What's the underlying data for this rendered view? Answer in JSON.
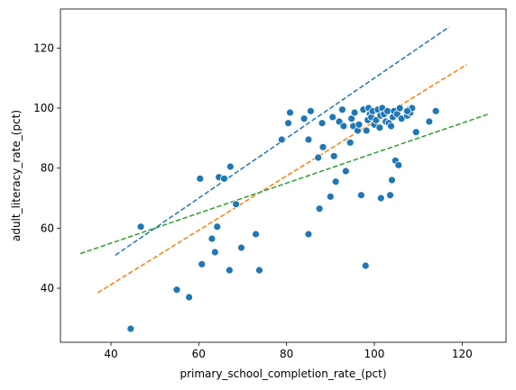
{
  "chart_data": {
    "type": "scatter",
    "xlabel": "primary_school_completion_rate_(pct)",
    "ylabel": "adult_literacy_rate_(pct)",
    "xlim": [
      28.5,
      130.0
    ],
    "ylim": [
      22.0,
      133.0
    ],
    "xticks": [
      40,
      60,
      80,
      100,
      120
    ],
    "yticks": [
      40,
      60,
      80,
      100,
      120
    ],
    "grid": false,
    "legend": "none",
    "point_color": "#1f77b4",
    "points": [
      {
        "x": 44.5,
        "y": 26.5
      },
      {
        "x": 46.8,
        "y": 60.5
      },
      {
        "x": 55.0,
        "y": 39.5
      },
      {
        "x": 57.8,
        "y": 37.0
      },
      {
        "x": 60.3,
        "y": 76.5
      },
      {
        "x": 60.7,
        "y": 48.0
      },
      {
        "x": 63.0,
        "y": 56.5
      },
      {
        "x": 63.7,
        "y": 52.0
      },
      {
        "x": 64.2,
        "y": 60.5
      },
      {
        "x": 64.6,
        "y": 77.0
      },
      {
        "x": 65.8,
        "y": 76.5
      },
      {
        "x": 67.2,
        "y": 80.5
      },
      {
        "x": 67.0,
        "y": 46.0
      },
      {
        "x": 68.5,
        "y": 68.0
      },
      {
        "x": 69.7,
        "y": 53.5
      },
      {
        "x": 73.0,
        "y": 58.0
      },
      {
        "x": 73.8,
        "y": 46.0
      },
      {
        "x": 78.9,
        "y": 89.5
      },
      {
        "x": 80.4,
        "y": 95.0
      },
      {
        "x": 80.8,
        "y": 98.5
      },
      {
        "x": 84.0,
        "y": 96.5
      },
      {
        "x": 85.0,
        "y": 89.5
      },
      {
        "x": 85.5,
        "y": 99.0
      },
      {
        "x": 85.0,
        "y": 58.0
      },
      {
        "x": 87.2,
        "y": 83.5
      },
      {
        "x": 87.5,
        "y": 66.5
      },
      {
        "x": 88.1,
        "y": 95.0
      },
      {
        "x": 88.3,
        "y": 87.0
      },
      {
        "x": 90.0,
        "y": 70.5
      },
      {
        "x": 90.5,
        "y": 97.0
      },
      {
        "x": 90.8,
        "y": 84.0
      },
      {
        "x": 91.2,
        "y": 75.5
      },
      {
        "x": 92.0,
        "y": 95.5
      },
      {
        "x": 92.7,
        "y": 99.5
      },
      {
        "x": 93.0,
        "y": 94.0
      },
      {
        "x": 93.5,
        "y": 79.0
      },
      {
        "x": 94.5,
        "y": 88.5
      },
      {
        "x": 94.8,
        "y": 96.5
      },
      {
        "x": 95.2,
        "y": 94.0
      },
      {
        "x": 95.5,
        "y": 98.5
      },
      {
        "x": 96.2,
        "y": 92.5
      },
      {
        "x": 96.5,
        "y": 94.5
      },
      {
        "x": 97.0,
        "y": 71.0
      },
      {
        "x": 97.5,
        "y": 99.5
      },
      {
        "x": 98.0,
        "y": 47.5
      },
      {
        "x": 98.2,
        "y": 92.5
      },
      {
        "x": 98.5,
        "y": 96.0
      },
      {
        "x": 98.7,
        "y": 100.0
      },
      {
        "x": 99.0,
        "y": 98.0
      },
      {
        "x": 99.3,
        "y": 97.0
      },
      {
        "x": 99.6,
        "y": 99.0
      },
      {
        "x": 100.0,
        "y": 94.5
      },
      {
        "x": 100.4,
        "y": 96.0
      },
      {
        "x": 100.8,
        "y": 99.5
      },
      {
        "x": 101.2,
        "y": 93.5
      },
      {
        "x": 101.4,
        "y": 97.5
      },
      {
        "x": 101.5,
        "y": 70.0
      },
      {
        "x": 101.8,
        "y": 100.0
      },
      {
        "x": 102.2,
        "y": 98.0
      },
      {
        "x": 102.6,
        "y": 95.5
      },
      {
        "x": 103.0,
        "y": 99.0
      },
      {
        "x": 103.3,
        "y": 95.0
      },
      {
        "x": 103.6,
        "y": 71.0
      },
      {
        "x": 103.8,
        "y": 94.0
      },
      {
        "x": 104.0,
        "y": 76.0
      },
      {
        "x": 104.2,
        "y": 97.0
      },
      {
        "x": 104.5,
        "y": 99.0
      },
      {
        "x": 104.8,
        "y": 82.5
      },
      {
        "x": 105.2,
        "y": 98.0
      },
      {
        "x": 105.5,
        "y": 81.0
      },
      {
        "x": 105.8,
        "y": 100.0
      },
      {
        "x": 106.2,
        "y": 96.5
      },
      {
        "x": 107.5,
        "y": 97.5
      },
      {
        "x": 107.8,
        "y": 99.5
      },
      {
        "x": 108.2,
        "y": 98.5
      },
      {
        "x": 108.6,
        "y": 100.0
      },
      {
        "x": 109.5,
        "y": 92.0
      },
      {
        "x": 112.5,
        "y": 95.5
      },
      {
        "x": 114.0,
        "y": 99.0
      },
      {
        "x": 107.5,
        "y": 99.0
      }
    ],
    "lines": [
      {
        "color": "#1f77b4",
        "x": [
          41.0,
          117.0
        ],
        "y": [
          51.0,
          127.0
        ]
      },
      {
        "color": "#ff7f0e",
        "x": [
          37.0,
          121.0
        ],
        "y": [
          38.5,
          114.5
        ]
      },
      {
        "color": "#2ca02c",
        "x": [
          33.0,
          126.0
        ],
        "y": [
          51.5,
          98.0
        ]
      }
    ]
  }
}
